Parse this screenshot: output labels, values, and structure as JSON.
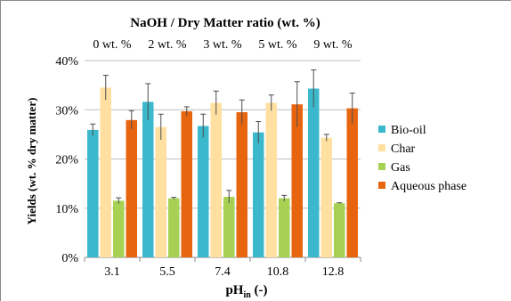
{
  "chart_data": {
    "type": "bar",
    "title": "NaOH / Dry Matter ratio (wt. %)",
    "xlabel_main": "pH",
    "xlabel_sub": "in",
    "xlabel_suffix": " (-)",
    "ylabel": "Yields (wt. % dry matter)",
    "categories": [
      "3.1",
      "5.5",
      "7.4",
      "10.8",
      "12.8"
    ],
    "top_labels": [
      "0 wt. %",
      "2 wt. %",
      "3 wt. %",
      "5 wt. %",
      "9 wt. %"
    ],
    "y_ticks": [
      "0%",
      "10%",
      "20%",
      "30%",
      "40%"
    ],
    "ylim": [
      0,
      40
    ],
    "grid": true,
    "legend_position": "right",
    "series": [
      {
        "name": "Bio-oil",
        "color": "#3bb8cc",
        "values": [
          25.9,
          31.6,
          26.7,
          25.4,
          34.3
        ],
        "errors": [
          1.2,
          3.7,
          2.4,
          2.2,
          3.8
        ]
      },
      {
        "name": "Char",
        "color": "#ffe0a0",
        "values": [
          34.5,
          26.5,
          31.4,
          31.4,
          24.3
        ],
        "errors": [
          2.5,
          2.6,
          2.4,
          1.6,
          0.7
        ]
      },
      {
        "name": "Gas",
        "color": "#a6d152",
        "values": [
          11.5,
          12.0,
          12.3,
          12.0,
          11.0
        ],
        "errors": [
          0.6,
          0.2,
          1.3,
          0.6,
          0.1
        ]
      },
      {
        "name": "Aqueous phase",
        "color": "#e8650f",
        "values": [
          27.9,
          29.7,
          29.5,
          31.1,
          30.3
        ],
        "errors": [
          1.9,
          0.9,
          2.5,
          4.6,
          3.1
        ]
      }
    ]
  }
}
